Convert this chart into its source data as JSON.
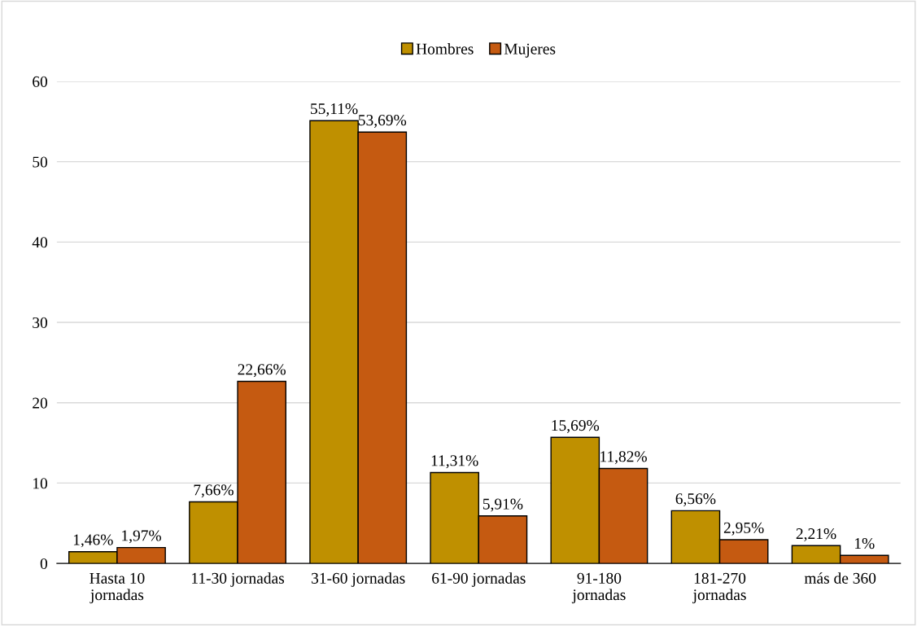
{
  "chart_data": {
    "type": "bar",
    "categories": [
      "Hasta 10\njornadas",
      "11-30 jornadas",
      "31-60 jornadas",
      "61-90 jornadas",
      "91-180\njornadas",
      "181-270\njornadas",
      "más de 360"
    ],
    "series": [
      {
        "name": "Hombres",
        "color": "#bf9000",
        "values": [
          1.46,
          7.66,
          55.11,
          11.31,
          15.69,
          6.56,
          2.21
        ],
        "value_labels": [
          "1,46%",
          "7,66%",
          "55,11%",
          "11,31%",
          "15,69%",
          "6,56%",
          "2,21%"
        ]
      },
      {
        "name": "Mujeres",
        "color": "#c55a11",
        "values": [
          1.97,
          22.66,
          53.69,
          5.91,
          11.82,
          2.95,
          1
        ],
        "value_labels": [
          "1,97%",
          "22,66%",
          "53,69%",
          "5,91%",
          "11,82%",
          "2,95%",
          "1%"
        ]
      }
    ],
    "ylim": [
      0,
      60
    ],
    "yticks": [
      0,
      10,
      20,
      30,
      40,
      50,
      60
    ],
    "grid": "y",
    "legend": "top"
  }
}
